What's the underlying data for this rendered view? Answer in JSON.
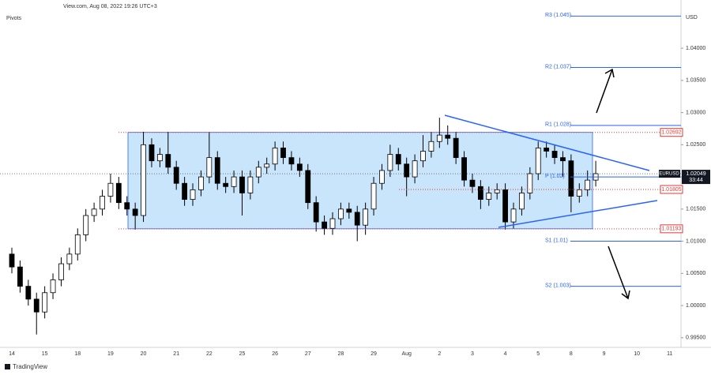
{
  "chart_data": {
    "type": "candlestick",
    "header": "View.com, Aug 08, 2022 19:26 UTC+3",
    "indicator": "Pivots",
    "currency": "USD",
    "brand": "TradingView",
    "up_color": "#ffffff",
    "down_color": "#000000",
    "ylim": [
      0.9935,
      1.0475
    ],
    "yticks": [
      {
        "value": 0.995,
        "label": "0.99500"
      },
      {
        "value": 1.0,
        "label": "1.00000"
      },
      {
        "value": 1.005,
        "label": "1.00500"
      },
      {
        "value": 1.01,
        "label": "1.01000"
      },
      {
        "value": 1.015,
        "label": "1.01500"
      },
      {
        "value": 1.02,
        "label": "1.02000"
      },
      {
        "value": 1.025,
        "label": "1.02500"
      },
      {
        "value": 1.03,
        "label": "1.03000"
      },
      {
        "value": 1.035,
        "label": "1.03500"
      },
      {
        "value": 1.04,
        "label": "1.04000"
      }
    ],
    "grid": false,
    "categories": [
      "14",
      null,
      null,
      null,
      "15",
      null,
      null,
      null,
      "18",
      null,
      null,
      null,
      "19",
      null,
      null,
      null,
      "20",
      null,
      null,
      null,
      "21",
      null,
      null,
      null,
      "22",
      null,
      null,
      null,
      "25",
      null,
      null,
      null,
      "26",
      null,
      null,
      null,
      "27",
      null,
      null,
      null,
      "28",
      null,
      null,
      null,
      "29",
      null,
      null,
      null,
      "Aug",
      null,
      null,
      null,
      "2",
      null,
      null,
      null,
      "3",
      null,
      null,
      null,
      "4",
      null,
      null,
      null,
      "5",
      null,
      null,
      null,
      "8",
      null,
      null,
      null,
      "9",
      null,
      null,
      null,
      "10",
      null,
      null,
      null,
      "11",
      null,
      null,
      null
    ],
    "ohlc": [
      [
        1.008,
        1.009,
        1.005,
        1.006
      ],
      [
        1.006,
        1.007,
        1.002,
        1.003
      ],
      [
        1.003,
        1.004,
        1.0,
        1.001
      ],
      [
        1.001,
        1.002,
        0.9955,
        0.999
      ],
      [
        0.999,
        1.003,
        0.998,
        1.002
      ],
      [
        1.002,
        1.005,
        1.001,
        1.004
      ],
      [
        1.004,
        1.0075,
        1.003,
        1.0065
      ],
      [
        1.0065,
        1.009,
        1.0055,
        1.008
      ],
      [
        1.008,
        1.012,
        1.007,
        1.011
      ],
      [
        1.011,
        1.015,
        1.01,
        1.014
      ],
      [
        1.014,
        1.016,
        1.013,
        1.015
      ],
      [
        1.015,
        1.018,
        1.014,
        1.017
      ],
      [
        1.017,
        1.0205,
        1.016,
        1.019
      ],
      [
        1.019,
        1.02,
        1.015,
        1.016
      ],
      [
        1.016,
        1.017,
        1.014,
        1.015
      ],
      [
        1.015,
        1.016,
        1.0118,
        1.014
      ],
      [
        1.014,
        1.027,
        1.013,
        1.025
      ],
      [
        1.025,
        1.026,
        1.0215,
        1.0225
      ],
      [
        1.0225,
        1.0245,
        1.0215,
        1.0235
      ],
      [
        1.0235,
        1.027,
        1.0205,
        1.0215
      ],
      [
        1.0215,
        1.0225,
        1.018,
        1.019
      ],
      [
        1.019,
        1.02,
        1.0155,
        1.0165
      ],
      [
        1.0165,
        1.019,
        1.0155,
        1.018
      ],
      [
        1.018,
        1.021,
        1.017,
        1.02
      ],
      [
        1.02,
        1.027,
        1.019,
        1.023
      ],
      [
        1.023,
        1.024,
        1.018,
        1.019
      ],
      [
        1.019,
        1.02,
        1.0175,
        1.0185
      ],
      [
        1.0185,
        1.021,
        1.0175,
        1.02
      ],
      [
        1.02,
        1.021,
        1.014,
        1.0175
      ],
      [
        1.0175,
        1.021,
        1.0165,
        1.02
      ],
      [
        1.02,
        1.0225,
        1.019,
        1.0215
      ],
      [
        1.0215,
        1.023,
        1.0205,
        1.022
      ],
      [
        1.022,
        1.0255,
        1.021,
        1.0245
      ],
      [
        1.0245,
        1.0255,
        1.022,
        1.023
      ],
      [
        1.023,
        1.024,
        1.021,
        1.022
      ],
      [
        1.022,
        1.023,
        1.02,
        1.021
      ],
      [
        1.021,
        1.022,
        1.015,
        1.016
      ],
      [
        1.016,
        1.017,
        1.0115,
        1.013
      ],
      [
        1.013,
        1.014,
        1.011,
        1.012
      ],
      [
        1.012,
        1.0145,
        1.011,
        1.0135
      ],
      [
        1.0135,
        1.016,
        1.0125,
        1.015
      ],
      [
        1.015,
        1.016,
        1.0135,
        1.0145
      ],
      [
        1.0145,
        1.0155,
        1.01,
        1.0125
      ],
      [
        1.0125,
        1.016,
        1.011,
        1.015
      ],
      [
        1.015,
        1.02,
        1.014,
        1.019
      ],
      [
        1.019,
        1.022,
        1.018,
        1.021
      ],
      [
        1.021,
        1.025,
        1.02,
        1.0235
      ],
      [
        1.0235,
        1.0245,
        1.021,
        1.022
      ],
      [
        1.022,
        1.023,
        1.017,
        1.02
      ],
      [
        1.02,
        1.0235,
        1.019,
        1.0225
      ],
      [
        1.0225,
        1.0265,
        1.0215,
        1.024
      ],
      [
        1.024,
        1.027,
        1.023,
        1.0255
      ],
      [
        1.0255,
        1.0292,
        1.0245,
        1.0265
      ],
      [
        1.0265,
        1.028,
        1.025,
        1.026
      ],
      [
        1.026,
        1.027,
        1.022,
        1.023
      ],
      [
        1.023,
        1.024,
        1.0185,
        1.0195
      ],
      [
        1.0195,
        1.0205,
        1.0175,
        1.0185
      ],
      [
        1.0185,
        1.0195,
        1.015,
        1.0165
      ],
      [
        1.0165,
        1.0185,
        1.0155,
        1.0175
      ],
      [
        1.0175,
        1.019,
        1.0165,
        1.018
      ],
      [
        1.018,
        1.019,
        1.0118,
        1.013
      ],
      [
        1.013,
        1.016,
        1.012,
        1.015
      ],
      [
        1.015,
        1.0185,
        1.014,
        1.0175
      ],
      [
        1.0175,
        1.0215,
        1.0165,
        1.0205
      ],
      [
        1.0205,
        1.0255,
        1.0195,
        1.0245
      ],
      [
        1.0245,
        1.0255,
        1.023,
        1.024
      ],
      [
        1.024,
        1.025,
        1.022,
        1.023
      ],
      [
        1.023,
        1.024,
        1.02,
        1.0225
      ],
      [
        1.0225,
        1.0235,
        1.0145,
        1.017
      ],
      [
        1.017,
        1.019,
        1.016,
        1.018
      ],
      [
        1.018,
        1.021,
        1.017,
        1.0195
      ],
      [
        1.0195,
        1.0225,
        1.0185,
        1.0205
      ],
      null,
      null,
      null,
      null,
      null,
      null,
      null,
      null,
      null,
      null,
      null,
      null
    ],
    "pivots": [
      {
        "label": "R3 (1.045)",
        "value": 1.045
      },
      {
        "label": "R2 (1.037)",
        "value": 1.037
      },
      {
        "label": "R1 (1.028)",
        "value": 1.028
      },
      {
        "label": "P (1.02)",
        "value": 1.02
      },
      {
        "label": "S1 (1.01)",
        "value": 1.01
      },
      {
        "label": "S2 (1.003)",
        "value": 1.003
      }
    ],
    "pivot_color": "#2962ff",
    "levels": [
      {
        "label": "1.02692",
        "value": 1.02692
      },
      {
        "label": "1.01805",
        "value": 1.01805
      },
      {
        "label": "1.01193",
        "value": 1.01193
      }
    ],
    "level_color": "#e53935",
    "range_fill": "#bbdefb",
    "current": {
      "symbol": "EURUSD",
      "label": "1.02049",
      "value": 1.02049,
      "countdown": "33:44"
    }
  }
}
